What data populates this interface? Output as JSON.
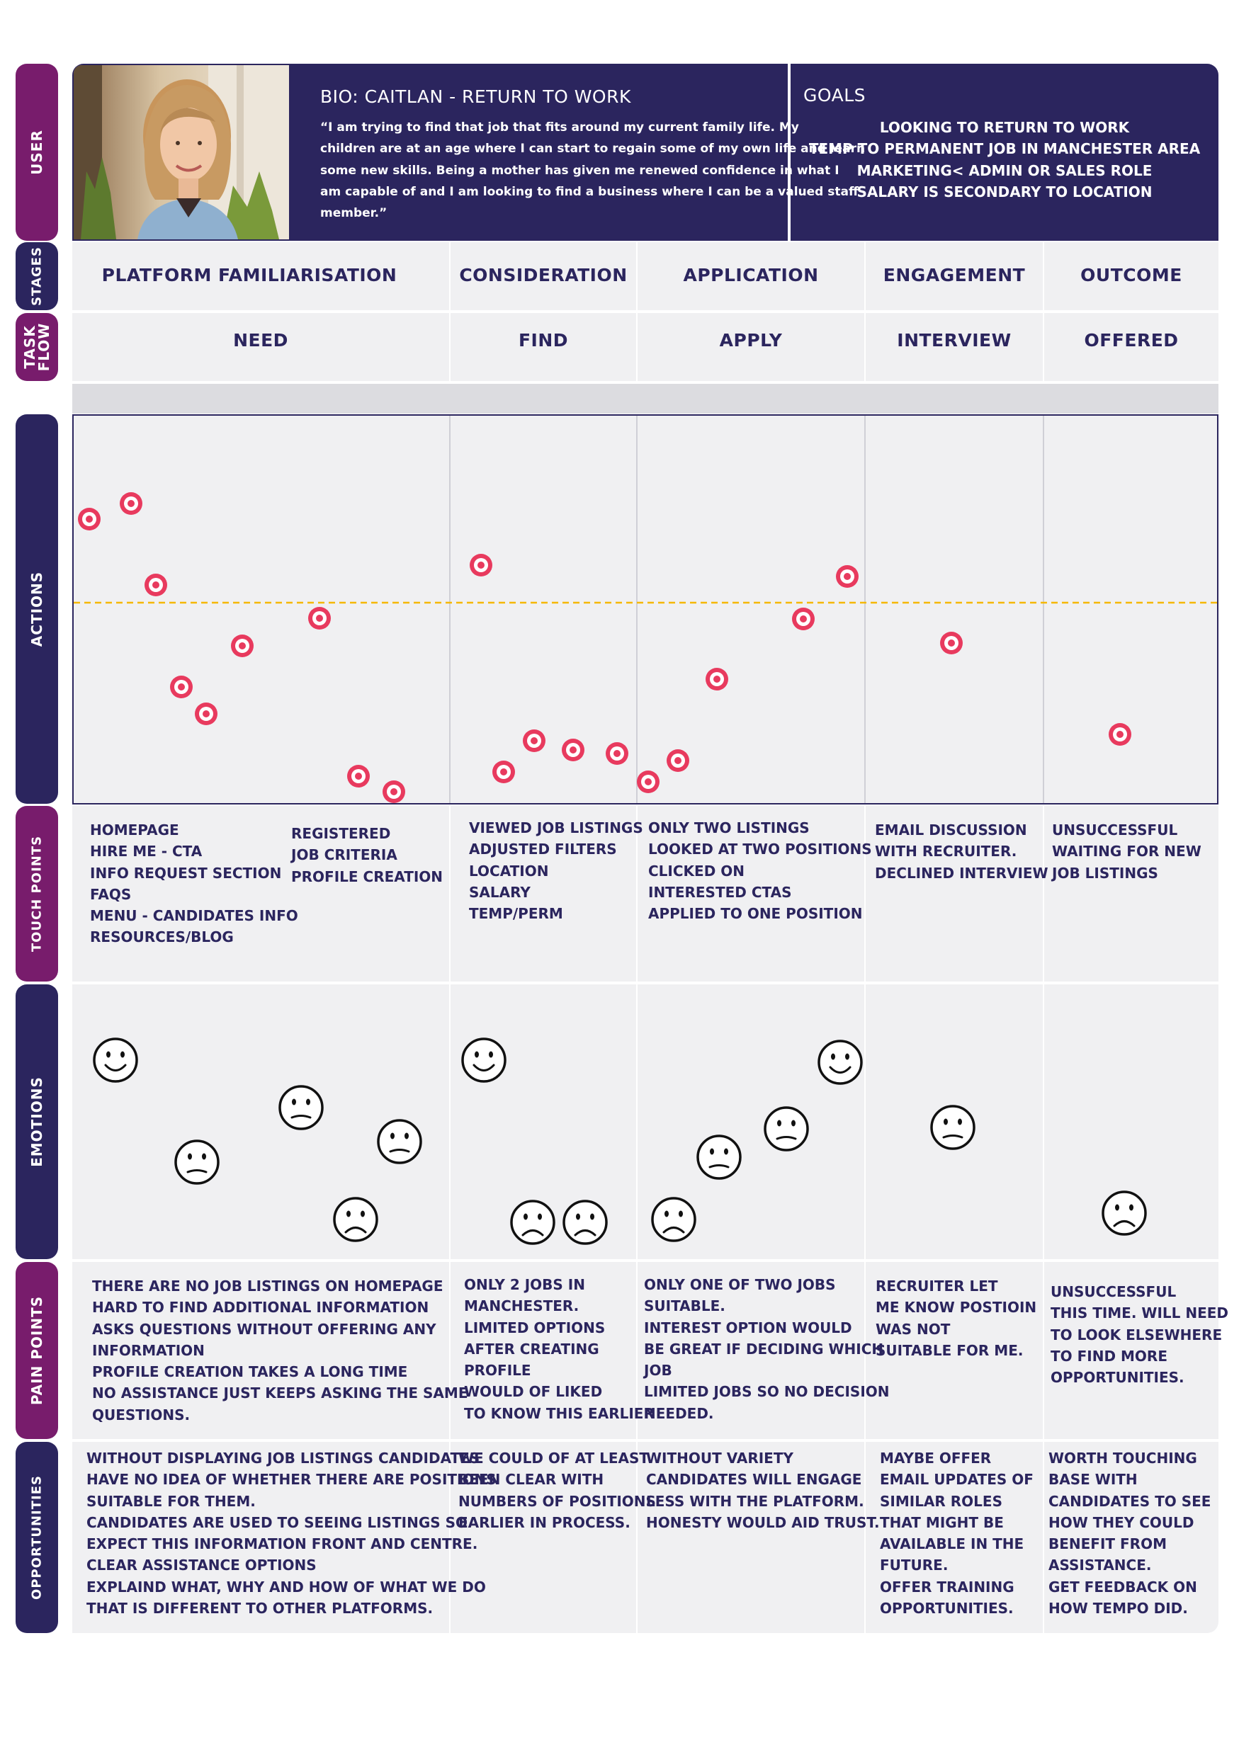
{
  "row_labels": {
    "user": "USER",
    "stages": "STAGES",
    "task_flow_line1": "TASK",
    "task_flow_line2": "FLOW",
    "actions": "ACTIONS",
    "touch_points": "TOUCH POINTS",
    "emotions": "EMOTIONS",
    "pain_points": "PAIN POINTS",
    "opportunities": "OPPORTUNITIES"
  },
  "bio": {
    "title": "BIO:  CAITLAN - RETURN TO WORK",
    "quote_lines": [
      "“I am trying to find that job that fits around my current family life.  My",
      "children are at an age where I can start to regain some of my own life and learn",
      "some new skills.  Being a mother has given me renewed confidence in what I",
      "am capable of and I am looking to find a business where I can be a valued staff",
      "member.”"
    ]
  },
  "goals": {
    "title": "GOALS",
    "items": [
      "LOOKING TO RETURN TO WORK",
      "TEMP TO PERMANENT JOB IN MANCHESTER  AREA",
      "MARKETING< ADMIN OR SALES ROLE",
      "SALARY IS SECONDARY TO LOCATION"
    ]
  },
  "columns": [
    {
      "stage": "PLATFORM FAMILIARISATION",
      "task": "NEED",
      "touch_points_a": [
        "HOMEPAGE",
        "HIRE ME - CTA",
        "INFO REQUEST SECTION",
        "FAQS",
        "MENU - CANDIDATES INFO",
        "RESOURCES/BLOG"
      ],
      "touch_points_b": [
        "REGISTERED",
        "JOB CRITERIA",
        "PROFILE CREATION"
      ],
      "pain_points": [
        "THERE ARE NO JOB LISTINGS ON HOMEPAGE",
        "HARD TO FIND ADDITIONAL INFORMATION",
        "ASKS QUESTIONS WITHOUT OFFERING ANY",
        "INFORMATION",
        "PROFILE CREATION TAKES A LONG TIME",
        "NO ASSISTANCE JUST KEEPS ASKING THE SAME",
        "QUESTIONS."
      ],
      "opportunities": [
        "WITHOUT DISPLAYING JOB LISTINGS CANDIDATES",
        "HAVE NO IDEA OF WHETHER THERE ARE POSITIONS",
        "SUITABLE FOR THEM.",
        "CANDIDATES ARE USED TO SEEING LISTINGS SO",
        "EXPECT THIS INFORMATION FRONT AND CENTRE.",
        "CLEAR ASSISTANCE OPTIONS",
        "EXPLAIND WHAT, WHY AND HOW OF WHAT WE DO",
        "THAT IS DIFFERENT TO OTHER PLATFORMS."
      ]
    },
    {
      "stage": "CONSIDERATION",
      "task": "FIND",
      "touch_points_a": [
        "VIEWED JOB LISTINGS",
        "ADJUSTED FILTERS",
        "LOCATION",
        "SALARY",
        "TEMP/PERM"
      ],
      "pain_points": [
        "ONLY 2 JOBS IN",
        "MANCHESTER.",
        "LIMITED OPTIONS",
        "AFTER CREATING",
        "PROFILE",
        "WOULD OF LIKED",
        "TO KNOW THIS EARLIER"
      ],
      "opportunities": [
        "WE COULD OF AT LEAST",
        "BEEN CLEAR WITH",
        "NUMBERS OF POSITIONS",
        "EARLIER IN PROCESS."
      ]
    },
    {
      "stage": "APPLICATION",
      "task": "APPLY",
      "touch_points_a": [
        "ONLY TWO LISTINGS",
        "LOOKED AT TWO POSITIONS",
        "CLICKED ON",
        "INTERESTED CTAS",
        "APPLIED TO ONE POSITION"
      ],
      "pain_points": [
        "ONLY ONE OF TWO JOBS",
        "SUITABLE.",
        "INTEREST OPTION WOULD",
        "BE GREAT IF DECIDING WHICH",
        "JOB",
        "LIMITED JOBS SO NO DECISION",
        "NEEDED."
      ],
      "opportunities": [
        "WITHOUT VARIETY",
        "CANDIDATES WILL ENGAGE",
        "LESS WITH THE PLATFORM.",
        "HONESTY WOULD AID TRUST."
      ]
    },
    {
      "stage": "ENGAGEMENT",
      "task": "INTERVIEW",
      "touch_points_a": [
        "EMAIL DISCUSSION",
        "WITH RECRUITER.",
        "DECLINED INTERVIEW"
      ],
      "pain_points": [
        "RECRUITER LET",
        "ME KNOW POSTIOIN",
        "WAS NOT",
        "SUITABLE FOR ME."
      ],
      "opportunities": [
        "MAYBE OFFER",
        "EMAIL UPDATES OF",
        "SIMILAR ROLES",
        "THAT MIGHT BE",
        "AVAILABLE IN THE",
        "FUTURE.",
        "OFFER TRAINING",
        "OPPORTUNITIES."
      ]
    },
    {
      "stage": "OUTCOME",
      "task": "OFFERED",
      "touch_points_a": [
        "UNSUCCESSFUL",
        "WAITING FOR NEW",
        "JOB LISTINGS"
      ],
      "pain_points": [
        "UNSUCCESSFUL",
        "THIS TIME.  WILL NEED",
        "TO LOOK ELSEWHERE",
        "TO FIND MORE",
        "OPPORTUNITIES."
      ],
      "opportunities": [
        "WORTH TOUCHING",
        "BASE WITH",
        "CANDIDATES TO SEE",
        "HOW THEY COULD",
        "BENEFIT FROM",
        "ASSISTANCE.",
        "GET FEEDBACK ON",
        "HOW TEMPO DID."
      ]
    }
  ],
  "colors": {
    "navy": "#2b255e",
    "purple": "#781c6c",
    "cell": "#f0f0f2",
    "band": "#dcdce0",
    "target": "#e83a5e",
    "midline": "#f5b800"
  },
  "action_icon": "target-icon",
  "emotion_faces": [
    "happy-face-icon",
    "neutral-face-icon",
    "sad-face-icon"
  ]
}
